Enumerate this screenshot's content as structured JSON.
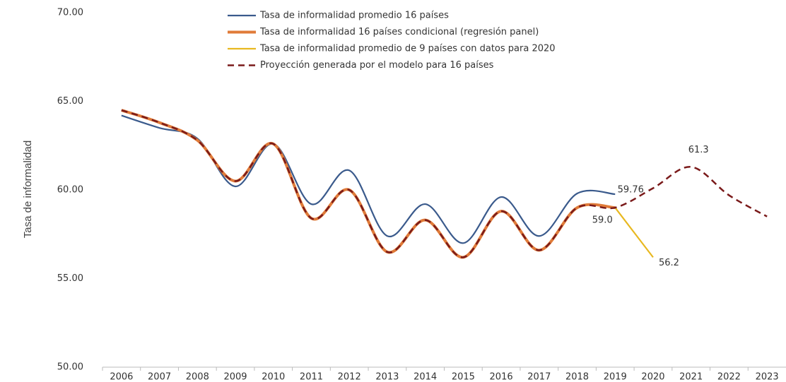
{
  "chart_data": {
    "type": "line",
    "y_label": "Tasa de informalidad",
    "categories": [
      "2006",
      "2007",
      "2008",
      "2009",
      "2010",
      "2011",
      "2012",
      "2013",
      "2014",
      "2015",
      "2016",
      "2017",
      "2018",
      "2019",
      "2020",
      "2021",
      "2022",
      "2023"
    ],
    "ylim": [
      50,
      70
    ],
    "yticks": [
      {
        "value": 50,
        "label": "50.00"
      },
      {
        "value": 55,
        "label": "55.00"
      },
      {
        "value": 60,
        "label": "60.00"
      },
      {
        "value": 65,
        "label": "65.00"
      },
      {
        "value": 70,
        "label": "70.00"
      }
    ],
    "grid": false,
    "legend": "top",
    "series": [
      {
        "name": "Tasa de informalidad promedio 16 países",
        "color": "#3a5a8c",
        "style": "solid",
        "values": [
          64.2,
          63.5,
          62.9,
          60.2,
          62.6,
          59.2,
          61.1,
          57.4,
          59.2,
          57.0,
          59.6,
          57.4,
          59.8,
          59.76,
          null,
          null,
          null,
          null
        ],
        "value_labels": [
          null,
          null,
          null,
          null,
          null,
          null,
          null,
          null,
          null,
          null,
          null,
          null,
          null,
          "59.76",
          null,
          null,
          null,
          null
        ]
      },
      {
        "name": "Tasa de informalidad 16 países condicional (regresión panel)",
        "color": "#e07b39",
        "style": "solid",
        "values": [
          64.5,
          63.8,
          62.8,
          60.5,
          62.6,
          58.4,
          60.0,
          56.5,
          58.3,
          56.2,
          58.8,
          56.6,
          59.0,
          59.0,
          null,
          null,
          null,
          null
        ],
        "value_labels": [
          null,
          null,
          null,
          null,
          null,
          null,
          null,
          null,
          null,
          null,
          null,
          null,
          null,
          "59.0",
          null,
          null,
          null,
          null
        ]
      },
      {
        "name": "Tasa de informalidad promedio de 9 países con datos para 2020",
        "color": "#e8b820",
        "style": "solid",
        "values": [
          null,
          null,
          null,
          null,
          null,
          null,
          null,
          null,
          null,
          null,
          null,
          null,
          null,
          59.0,
          56.2,
          null,
          null,
          null
        ],
        "value_labels": [
          null,
          null,
          null,
          null,
          null,
          null,
          null,
          null,
          null,
          null,
          null,
          null,
          null,
          null,
          "56.2",
          null,
          null,
          null
        ]
      },
      {
        "name": "Proyección generada por el modelo para 16 países",
        "color": "#7a1a1a",
        "style": "dashed",
        "values": [
          64.5,
          63.8,
          62.8,
          60.5,
          62.6,
          58.4,
          60.0,
          56.5,
          58.3,
          56.2,
          58.8,
          56.6,
          59.0,
          59.0,
          60.1,
          61.3,
          59.7,
          58.5
        ],
        "value_labels": [
          null,
          null,
          null,
          null,
          null,
          null,
          null,
          null,
          null,
          null,
          null,
          null,
          null,
          null,
          null,
          "61.3",
          null,
          null
        ]
      }
    ]
  }
}
